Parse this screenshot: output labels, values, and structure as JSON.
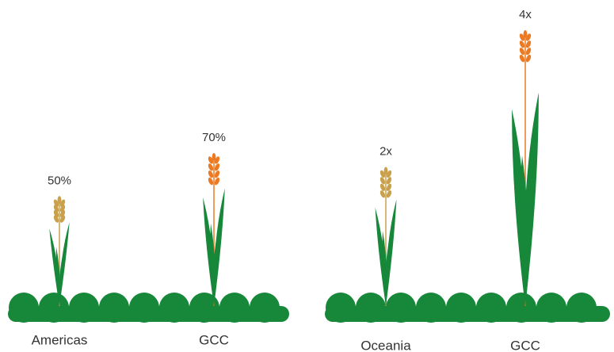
{
  "chart_data": [
    {
      "type": "pictogram",
      "categories": [
        "Americas",
        "GCC"
      ],
      "values": [
        50,
        70
      ],
      "value_labels": [
        "50%",
        "70%"
      ],
      "colors": [
        "#c9a04b",
        "#ec7a22"
      ],
      "leaf_color": "#17873a"
    },
    {
      "type": "pictogram",
      "categories": [
        "Oceania",
        "GCC"
      ],
      "values": [
        2,
        4
      ],
      "value_labels": [
        "2x",
        "4x"
      ],
      "colors": [
        "#c9a04b",
        "#ec7a22"
      ],
      "leaf_color": "#17873a"
    }
  ]
}
